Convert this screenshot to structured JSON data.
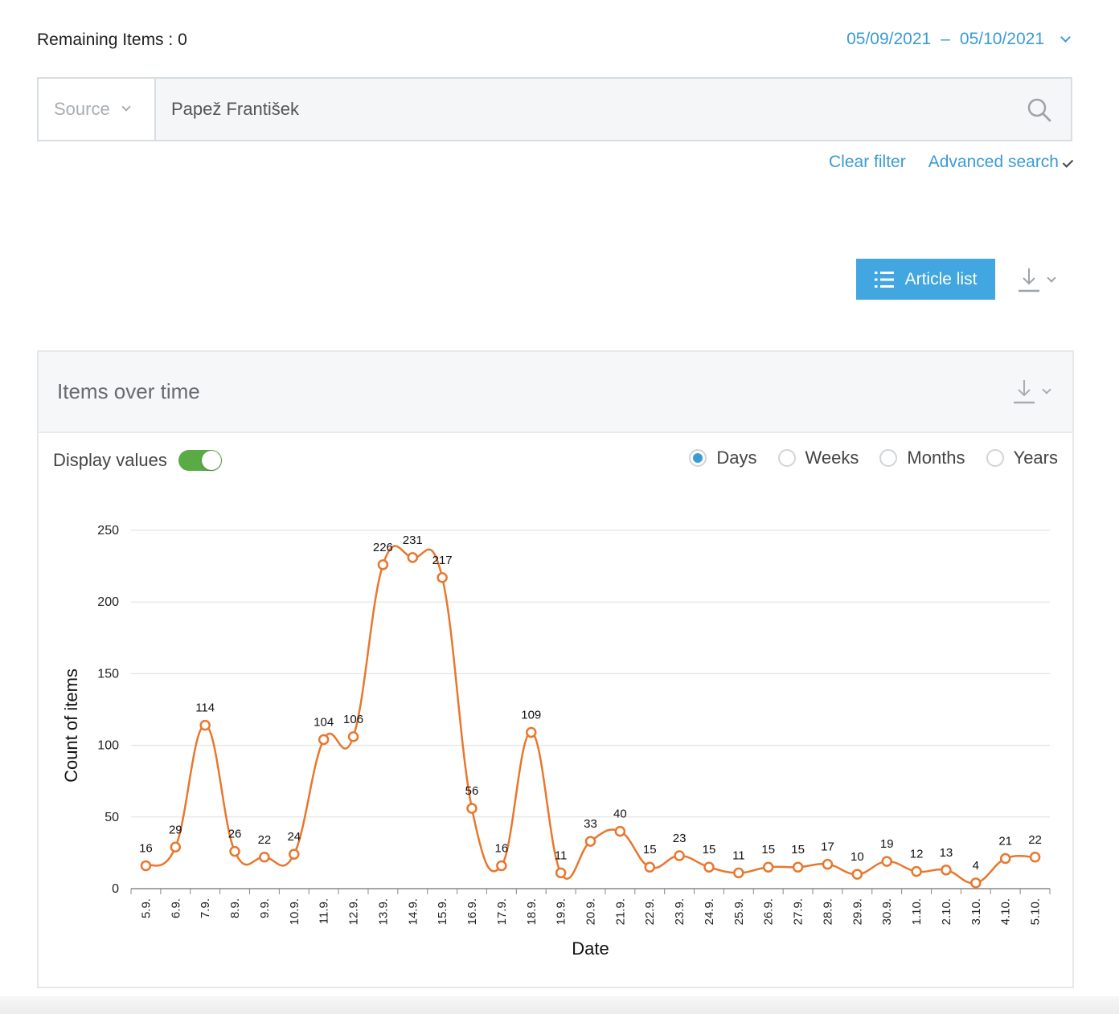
{
  "header": {
    "remaining_label": "Remaining Items : 0",
    "date_from": "05/09/2021",
    "date_to": "05/10/2021"
  },
  "search": {
    "source_label": "Source",
    "query": "Papež František",
    "search_icon": "search-icon"
  },
  "filter_links": {
    "clear": "Clear filter",
    "advanced": "Advanced search"
  },
  "toolbar": {
    "article_list_label": "Article list",
    "list_icon": "list-icon",
    "download_icon": "download-icon"
  },
  "panel": {
    "title": "Items over time",
    "display_values_label": "Display values",
    "display_values_on": true,
    "granularity": [
      {
        "label": "Days",
        "selected": true
      },
      {
        "label": "Weeks",
        "selected": false
      },
      {
        "label": "Months",
        "selected": false
      },
      {
        "label": "Years",
        "selected": false
      }
    ]
  },
  "colors": {
    "accent": "#3a9bd5",
    "line": "#e8772e",
    "toggle_on": "#5aaa46",
    "button": "#42a6e0"
  },
  "chart_data": {
    "type": "line",
    "xlabel": "Date",
    "ylabel": "Count of items",
    "ylim": [
      0,
      250
    ],
    "yticks": [
      0,
      50,
      100,
      150,
      200,
      250
    ],
    "grid": true,
    "show_values": true,
    "categories": [
      "5.9.",
      "6.9.",
      "7.9.",
      "8.9.",
      "9.9.",
      "10.9.",
      "11.9.",
      "12.9.",
      "13.9.",
      "14.9.",
      "15.9.",
      "16.9.",
      "17.9.",
      "18.9.",
      "19.9.",
      "20.9.",
      "21.9.",
      "22.9.",
      "23.9.",
      "24.9.",
      "25.9.",
      "26.9.",
      "27.9.",
      "28.9.",
      "29.9.",
      "30.9.",
      "1.10.",
      "2.10.",
      "3.10.",
      "4.10.",
      "5.10."
    ],
    "values": [
      16,
      29,
      114,
      26,
      22,
      24,
      104,
      106,
      226,
      231,
      217,
      56,
      16,
      109,
      11,
      33,
      40,
      15,
      23,
      15,
      11,
      15,
      15,
      17,
      10,
      19,
      12,
      13,
      4,
      21,
      22
    ]
  }
}
